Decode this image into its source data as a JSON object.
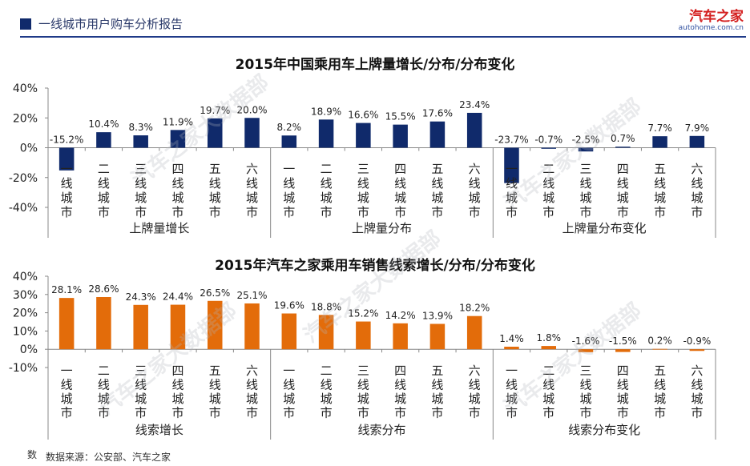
{
  "header": {
    "title": "一线城市用户购车分析报告"
  },
  "brand": {
    "name": "汽车之家",
    "url": "autohome.com.cn"
  },
  "watermark": "汽车之家大数据部",
  "footer": {
    "mark": "数",
    "source": "数据来源：公安部、汽车之家"
  },
  "colors": {
    "navy": "#102a6b",
    "orange": "#e36c0a",
    "axis": "#888888"
  },
  "chart_data": [
    {
      "type": "bar",
      "title": "2015年中国乘用车上牌量增长/分布/分布变化",
      "color": "#102a6b",
      "ylim": [
        -40,
        40
      ],
      "yticks": [
        40,
        20,
        0,
        -20,
        -40
      ],
      "ytick_labels": [
        "40%",
        "20%",
        "0%",
        "-20%",
        "-40%"
      ],
      "categories": [
        "一线城市",
        "二线城市",
        "三线城市",
        "四线城市",
        "五线城市",
        "六线城市"
      ],
      "groups": [
        {
          "name": "上牌量增长",
          "values": [
            -15.2,
            10.4,
            8.3,
            11.9,
            19.7,
            20.0
          ],
          "labels": [
            "-15.2%",
            "10.4%",
            "8.3%",
            "11.9%",
            "19.7%",
            "20.0%"
          ]
        },
        {
          "name": "上牌量分布",
          "values": [
            8.2,
            18.9,
            16.6,
            15.5,
            17.6,
            23.4
          ],
          "labels": [
            "8.2%",
            "18.9%",
            "16.6%",
            "15.5%",
            "17.6%",
            "23.4%"
          ]
        },
        {
          "name": "上牌量分布变化",
          "values": [
            -23.7,
            -0.7,
            -2.5,
            0.7,
            7.7,
            7.9
          ],
          "labels": [
            "-23.7%",
            "-0.7%",
            "-2.5%",
            "0.7%",
            "7.7%",
            "7.9%"
          ]
        }
      ]
    },
    {
      "type": "bar",
      "title": "2015年汽车之家乘用车销售线索增长/分布/分布变化",
      "color": "#e36c0a",
      "ylim": [
        -10,
        40
      ],
      "yticks": [
        40,
        30,
        20,
        10,
        0,
        -10
      ],
      "ytick_labels": [
        "40%",
        "30%",
        "20%",
        "10%",
        "0%",
        "-10%"
      ],
      "categories": [
        "一线城市",
        "二线城市",
        "三线城市",
        "四线城市",
        "五线城市",
        "六线城市"
      ],
      "groups": [
        {
          "name": "线索增长",
          "values": [
            28.1,
            28.6,
            24.3,
            24.4,
            26.5,
            25.1
          ],
          "labels": [
            "28.1%",
            "28.6%",
            "24.3%",
            "24.4%",
            "26.5%",
            "25.1%"
          ]
        },
        {
          "name": "线索分布",
          "values": [
            19.6,
            18.8,
            15.2,
            14.2,
            13.9,
            18.2
          ],
          "labels": [
            "19.6%",
            "18.8%",
            "15.2%",
            "14.2%",
            "13.9%",
            "18.2%"
          ]
        },
        {
          "name": "线索分布变化",
          "values": [
            1.4,
            1.8,
            -1.6,
            -1.5,
            0.2,
            -0.9
          ],
          "labels": [
            "1.4%",
            "1.8%",
            "-1.6%",
            "-1.5%",
            "0.2%",
            "-0.9%"
          ]
        }
      ]
    }
  ]
}
